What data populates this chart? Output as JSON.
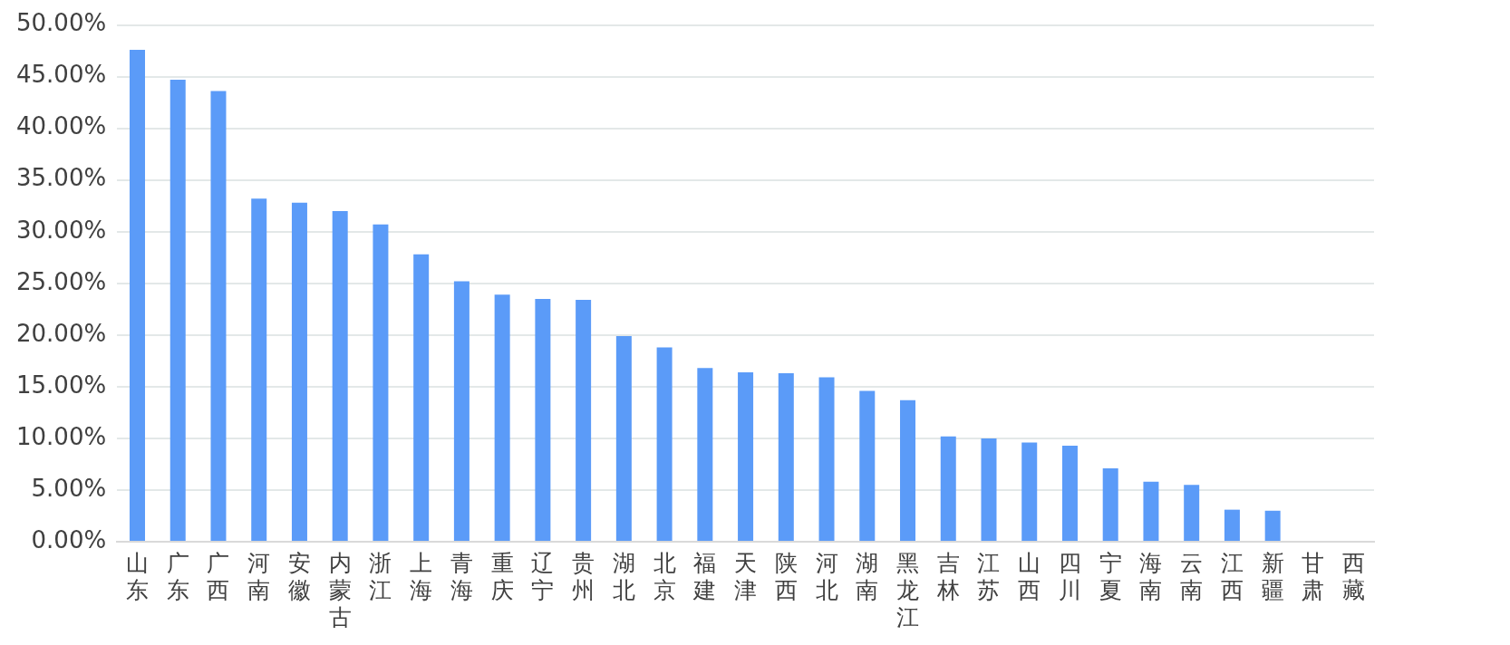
{
  "chart_data": {
    "type": "bar",
    "categories": [
      "山东",
      "广东",
      "广西",
      "河南",
      "安徽",
      "内蒙古",
      "浙江",
      "上海",
      "青海",
      "重庆",
      "辽宁",
      "贵州",
      "湖北",
      "北京",
      "福建",
      "天津",
      "陕西",
      "河北",
      "湖南",
      "黑龙江",
      "吉林",
      "江苏",
      "山西",
      "四川",
      "宁夏",
      "海南",
      "云南",
      "江西",
      "新疆",
      "甘肃",
      "西藏"
    ],
    "values": [
      47.6,
      44.7,
      43.6,
      33.2,
      32.8,
      32.0,
      30.7,
      27.8,
      25.2,
      23.9,
      23.5,
      23.4,
      19.9,
      18.8,
      16.8,
      16.4,
      16.3,
      15.9,
      14.6,
      13.7,
      10.2,
      10.0,
      9.6,
      9.3,
      7.1,
      5.8,
      5.5,
      3.1,
      3.0,
      0,
      0
    ],
    "color": "#5b9bf8",
    "ylim": [
      0,
      50
    ],
    "yticks": [
      {
        "value": 0,
        "label": "0.00%"
      },
      {
        "value": 5,
        "label": "5.00%"
      },
      {
        "value": 10,
        "label": "10.00%"
      },
      {
        "value": 15,
        "label": "15.00%"
      },
      {
        "value": 20,
        "label": "20.00%"
      },
      {
        "value": 25,
        "label": "25.00%"
      },
      {
        "value": 30,
        "label": "30.00%"
      },
      {
        "value": 35,
        "label": "35.00%"
      },
      {
        "value": 40,
        "label": "40.00%"
      },
      {
        "value": 45,
        "label": "45.00%"
      },
      {
        "value": 50,
        "label": "50.00%"
      }
    ],
    "grid": "y",
    "legend": false
  }
}
